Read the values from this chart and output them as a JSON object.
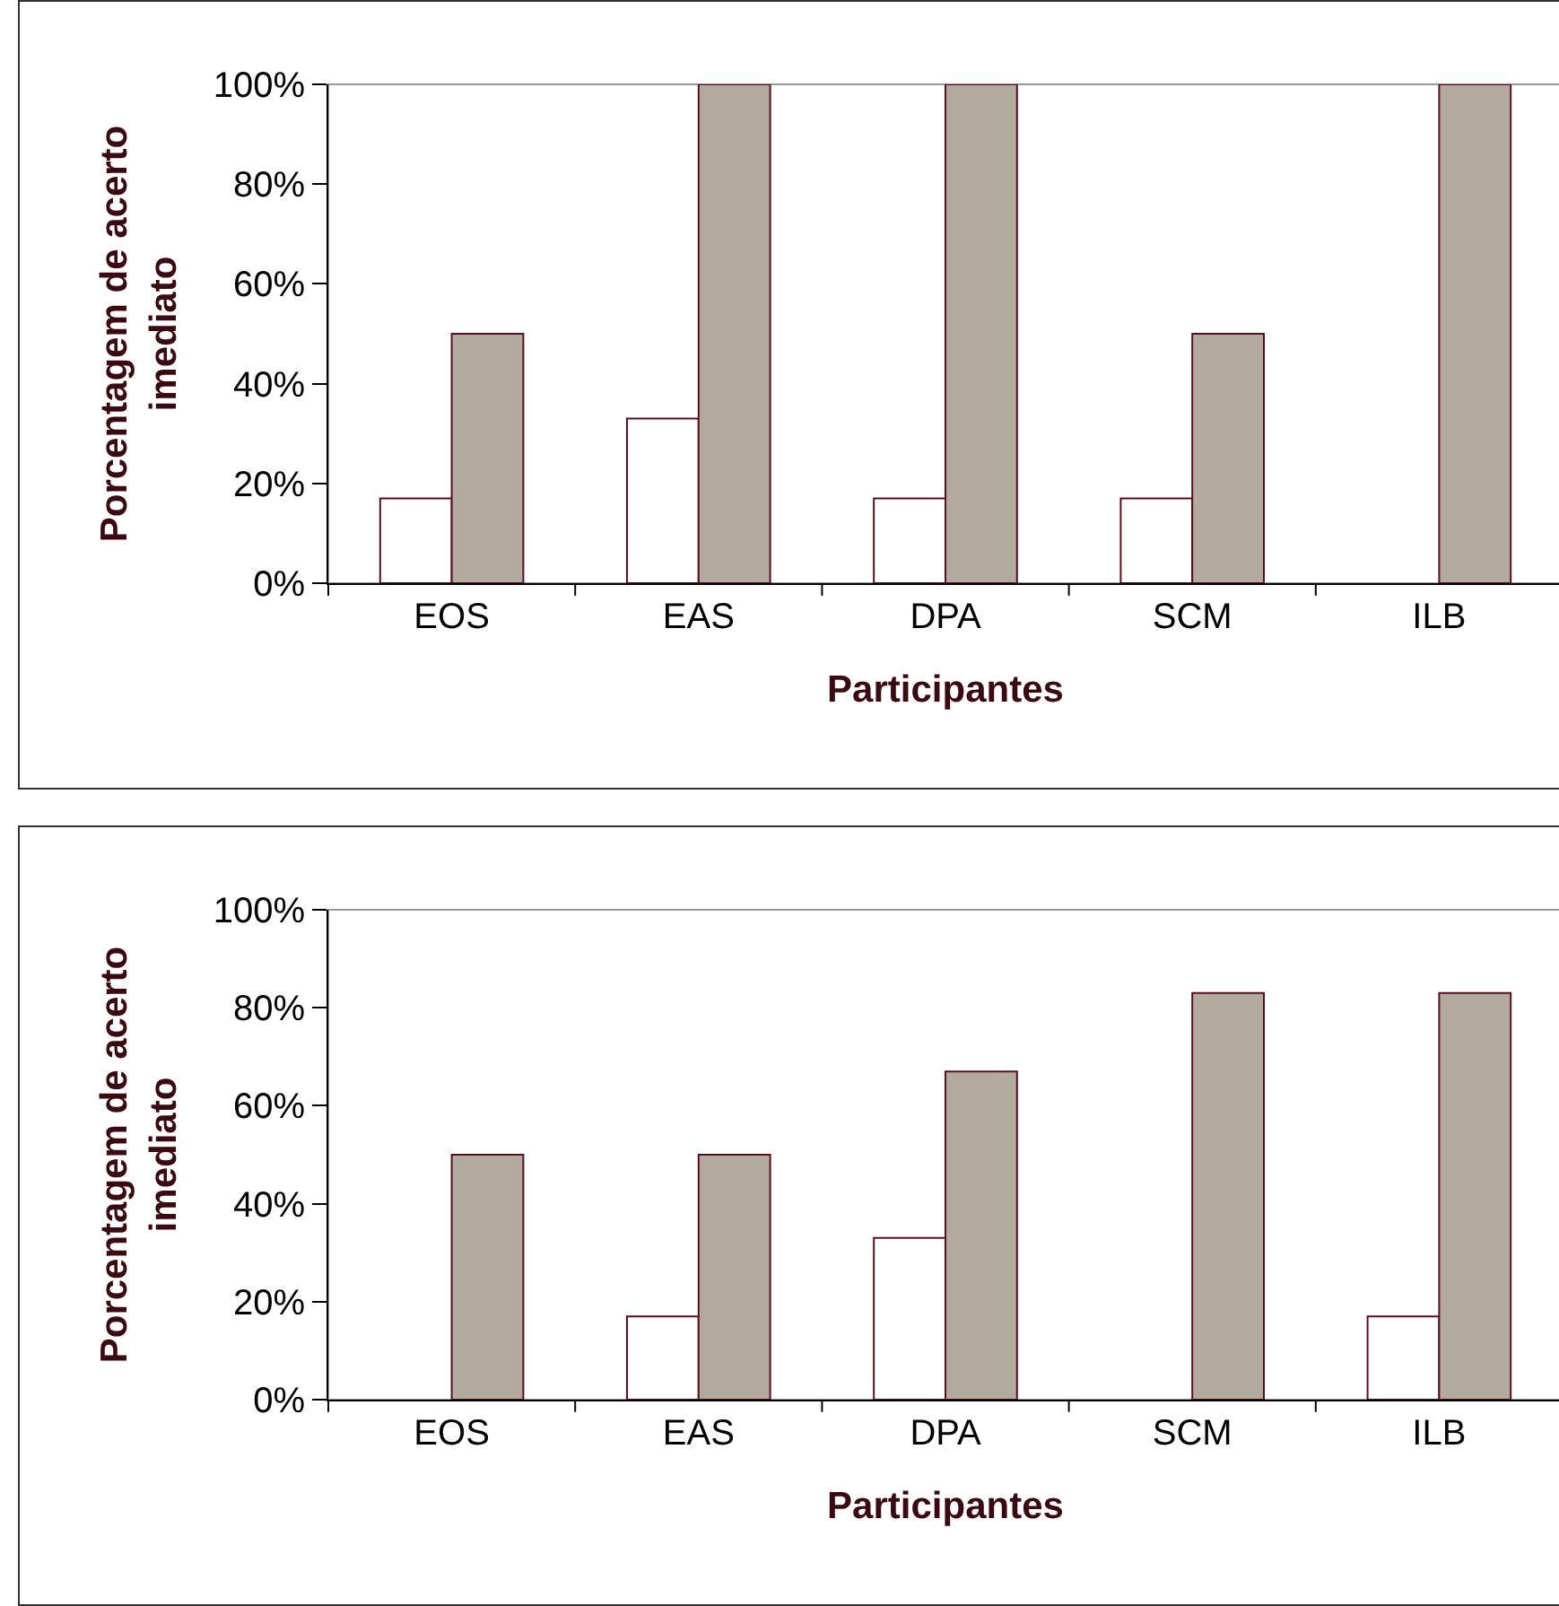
{
  "chart_data": [
    {
      "type": "bar",
      "xlabel": "Participantes",
      "ylabel": "Porcentagem de acerto imediato",
      "categories": [
        "EOS",
        "EAS",
        "DPA",
        "SCM",
        "ILB"
      ],
      "series": [
        {
          "color": "#ffffff",
          "values": [
            17,
            33,
            17,
            17,
            0
          ]
        },
        {
          "color": "#b2aa9d",
          "values": [
            50,
            100,
            100,
            50,
            100
          ]
        }
      ],
      "ylim": [
        0,
        100
      ],
      "yticks": [
        {
          "value": 0,
          "label": "0%"
        },
        {
          "value": 20,
          "label": "20%"
        },
        {
          "value": 40,
          "label": "40%"
        },
        {
          "value": 60,
          "label": "60%"
        },
        {
          "value": 80,
          "label": "80%"
        },
        {
          "value": 100,
          "label": "100%"
        }
      ],
      "grid": false
    },
    {
      "type": "bar",
      "xlabel": "Participantes",
      "ylabel": "Porcentagem de acerto imediato",
      "categories": [
        "EOS",
        "EAS",
        "DPA",
        "SCM",
        "ILB"
      ],
      "series": [
        {
          "color": "#ffffff",
          "values": [
            0,
            17,
            33,
            0,
            17
          ]
        },
        {
          "color": "#b2aa9d",
          "values": [
            50,
            50,
            67,
            83,
            83
          ]
        }
      ],
      "ylim": [
        0,
        100
      ],
      "yticks": [
        {
          "value": 0,
          "label": "0%"
        },
        {
          "value": 20,
          "label": "20%"
        },
        {
          "value": 40,
          "label": "40%"
        },
        {
          "value": 60,
          "label": "60%"
        },
        {
          "value": 80,
          "label": "80%"
        },
        {
          "value": 100,
          "label": "100%"
        }
      ],
      "grid": false
    }
  ]
}
